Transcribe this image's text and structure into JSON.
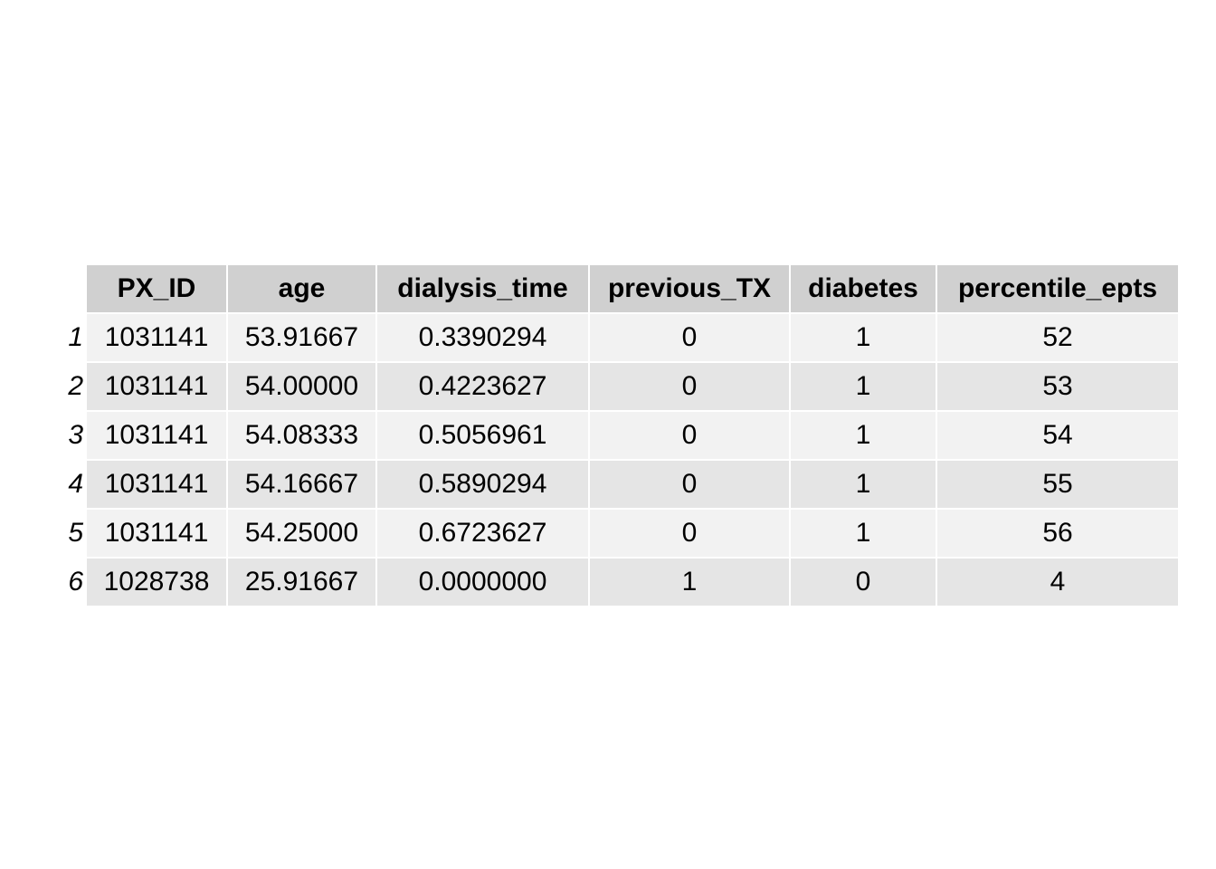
{
  "chart_data": {
    "type": "table",
    "columns": [
      "PX_ID",
      "age",
      "dialysis_time",
      "previous_TX",
      "diabetes",
      "percentile_epts"
    ],
    "rows": [
      {
        "rowname": "1",
        "cells": [
          "1031141",
          "53.91667",
          "0.3390294",
          "0",
          "1",
          "52"
        ]
      },
      {
        "rowname": "2",
        "cells": [
          "1031141",
          "54.00000",
          "0.4223627",
          "0",
          "1",
          "53"
        ]
      },
      {
        "rowname": "3",
        "cells": [
          "1031141",
          "54.08333",
          "0.5056961",
          "0",
          "1",
          "54"
        ]
      },
      {
        "rowname": "4",
        "cells": [
          "1031141",
          "54.16667",
          "0.5890294",
          "0",
          "1",
          "55"
        ]
      },
      {
        "rowname": "5",
        "cells": [
          "1031141",
          "54.25000",
          "0.6723627",
          "0",
          "1",
          "56"
        ]
      },
      {
        "rowname": "6",
        "cells": [
          "1028738",
          "25.91667",
          "0.0000000",
          "1",
          "0",
          "4"
        ]
      }
    ],
    "colors": {
      "header_fill": "#d0d0d0",
      "row_fill_odd": "#f2f2f2",
      "row_fill_even": "#e5e5e5",
      "grid_line": "#ffffff"
    }
  }
}
